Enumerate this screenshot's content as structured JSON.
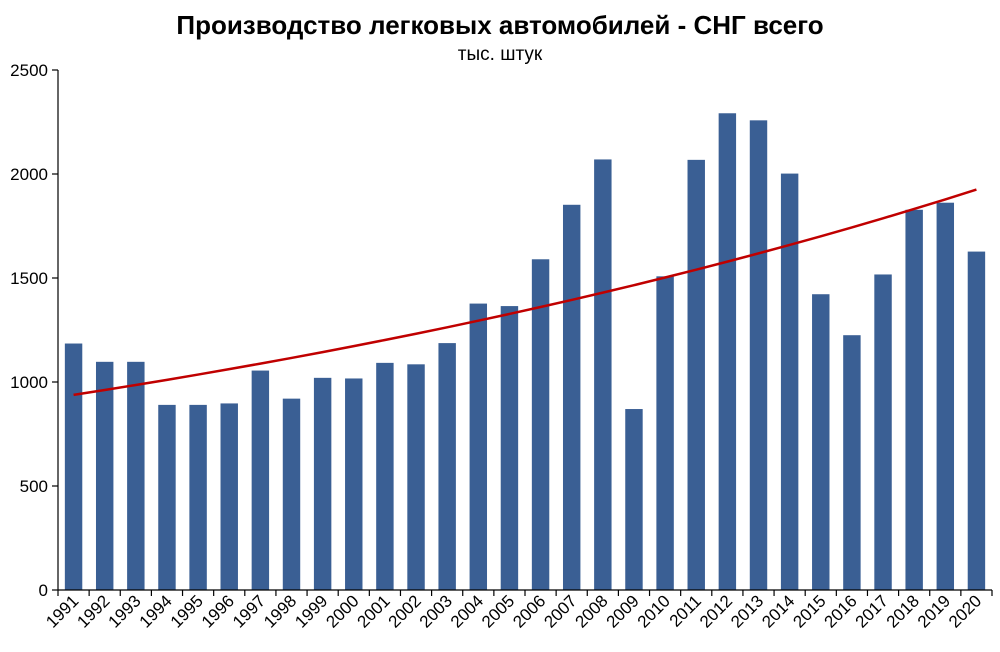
{
  "chart_data": {
    "type": "bar",
    "title": "Производство легковых автомобилей - СНГ  всего",
    "subtitle": "тыс. штук",
    "xlabel": "",
    "ylabel": "",
    "ylim": [
      0,
      2500
    ],
    "yticks": [
      0,
      500,
      1000,
      1500,
      2000,
      2500
    ],
    "grid": false,
    "categories": [
      "1991",
      "1992",
      "1993",
      "1994",
      "1995",
      "1996",
      "1997",
      "1998",
      "1999",
      "2000",
      "2001",
      "2002",
      "2003",
      "2004",
      "2005",
      "2006",
      "2007",
      "2008",
      "2009",
      "2010",
      "2011",
      "2012",
      "2013",
      "2014",
      "2015",
      "2016",
      "2017",
      "2018",
      "2019",
      "2020"
    ],
    "series": [
      {
        "values": [
          1185,
          1097,
          1097,
          890,
          890,
          897,
          1055,
          920,
          1020,
          1017,
          1092,
          1085,
          1187,
          1377,
          1365,
          1590,
          1852,
          2070,
          870,
          1508,
          2068,
          2292,
          2258,
          2002,
          1422,
          1225,
          1517,
          1828,
          1862,
          1627
        ],
        "color": "#3a5f94"
      }
    ],
    "trendline": {
      "type": "exponential",
      "start": 938,
      "end": 1925,
      "color": "#c00000"
    }
  }
}
